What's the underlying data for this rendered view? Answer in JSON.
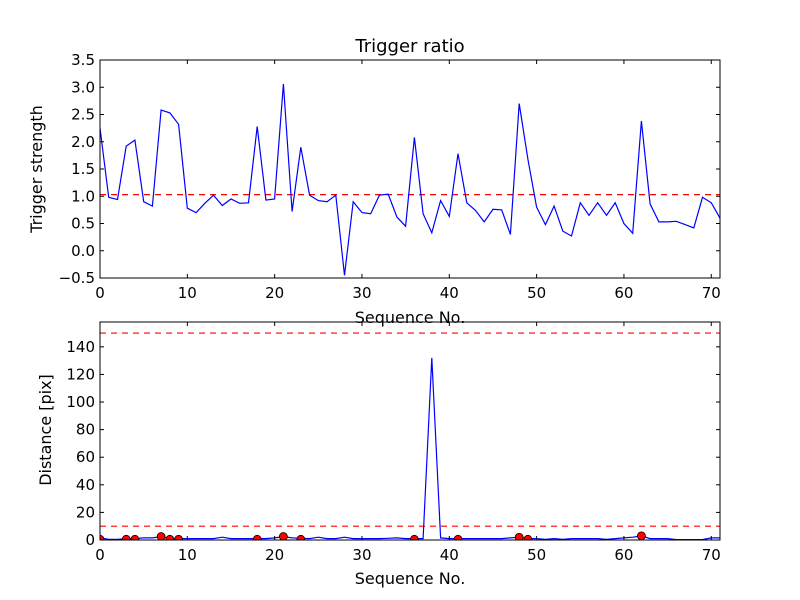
{
  "chart_data": [
    {
      "type": "line",
      "title": "Trigger ratio",
      "xlabel": "Sequence No.",
      "ylabel": "Trigger strength",
      "xlim": [
        0,
        71
      ],
      "ylim": [
        -0.5,
        3.5
      ],
      "xticks": [
        0,
        10,
        20,
        30,
        40,
        50,
        60,
        70
      ],
      "yticks": [
        -0.5,
        0.0,
        0.5,
        1.0,
        1.5,
        2.0,
        2.5,
        3.0,
        3.5
      ],
      "ytick_labels": [
        "−0.5",
        "0.0",
        "0.5",
        "1.0",
        "1.5",
        "2.0",
        "2.5",
        "3.0",
        "3.5"
      ],
      "grid": false,
      "series": [
        {
          "color": "#0000ff",
          "x": [
            0,
            1,
            2,
            3,
            4,
            5,
            6,
            7,
            8,
            9,
            10,
            11,
            12,
            13,
            14,
            15,
            16,
            17,
            18,
            19,
            20,
            21,
            22,
            23,
            24,
            25,
            26,
            27,
            28,
            29,
            30,
            31,
            32,
            33,
            34,
            35,
            36,
            37,
            38,
            39,
            40,
            41,
            42,
            43,
            44,
            45,
            46,
            47,
            48,
            49,
            50,
            51,
            52,
            53,
            54,
            55,
            56,
            57,
            58,
            59,
            60,
            61,
            62,
            63,
            64,
            65,
            66,
            67,
            68,
            69,
            70,
            71
          ],
          "y": [
            2.25,
            0.98,
            0.94,
            1.92,
            2.03,
            0.9,
            0.82,
            2.58,
            2.53,
            2.32,
            0.78,
            0.7,
            0.87,
            1.02,
            0.83,
            0.95,
            0.87,
            0.88,
            2.28,
            0.93,
            0.95,
            3.06,
            0.72,
            1.9,
            1.02,
            0.92,
            0.9,
            1.02,
            -0.45,
            0.9,
            0.7,
            0.68,
            1.02,
            1.04,
            0.62,
            0.45,
            2.08,
            0.68,
            0.33,
            0.92,
            0.63,
            1.78,
            0.88,
            0.74,
            0.53,
            0.76,
            0.75,
            0.3,
            2.7,
            1.68,
            0.8,
            0.48,
            0.82,
            0.36,
            0.27,
            0.88,
            0.65,
            0.88,
            0.65,
            0.88,
            0.5,
            0.32,
            2.38,
            0.86,
            0.53,
            0.53,
            0.54,
            0.48,
            0.42,
            0.98,
            0.88,
            0.6
          ]
        }
      ],
      "reference_lines": [
        {
          "y": 1.03,
          "color": "#ff0000",
          "style": "dashed"
        }
      ]
    },
    {
      "type": "line",
      "title": "",
      "xlabel": "Sequence No.",
      "ylabel": "Distance [pix]",
      "xlim": [
        0,
        71
      ],
      "ylim": [
        0,
        158
      ],
      "xticks": [
        0,
        10,
        20,
        30,
        40,
        50,
        60,
        70
      ],
      "yticks": [
        0,
        20,
        40,
        60,
        80,
        100,
        120,
        140
      ],
      "grid": false,
      "series": [
        {
          "color": "#0000ff",
          "x": [
            0,
            1,
            2,
            3,
            4,
            5,
            6,
            7,
            8,
            9,
            10,
            11,
            12,
            13,
            14,
            15,
            16,
            17,
            18,
            19,
            20,
            21,
            22,
            23,
            24,
            25,
            26,
            27,
            28,
            29,
            30,
            31,
            32,
            33,
            34,
            35,
            36,
            37,
            38,
            39,
            40,
            41,
            42,
            43,
            44,
            45,
            46,
            47,
            48,
            49,
            50,
            51,
            52,
            53,
            54,
            55,
            56,
            57,
            58,
            59,
            60,
            61,
            62,
            63,
            64,
            65,
            66,
            67,
            68,
            69,
            70,
            71
          ],
          "y": [
            1.5,
            0.5,
            0.5,
            1,
            1,
            1.5,
            1.5,
            2.5,
            1,
            1,
            1,
            1,
            1,
            1,
            2,
            1,
            1,
            1,
            1,
            1,
            1.5,
            2.5,
            1.5,
            1.2,
            1,
            2,
            1,
            1,
            2,
            1,
            1,
            1,
            1,
            1.2,
            1.5,
            1,
            1,
            1,
            132,
            1.5,
            1,
            1,
            1,
            1,
            1,
            1,
            1,
            1.5,
            2,
            1,
            1,
            0.5,
            1,
            0.5,
            1,
            1,
            1,
            1,
            0.5,
            1,
            1.5,
            2,
            3,
            1,
            1,
            1,
            0.3,
            0.3,
            0.3,
            0.3,
            1.5,
            1.5
          ]
        }
      ],
      "markers": {
        "color": "#ff0000",
        "x": [
          0,
          3,
          4,
          7,
          8,
          9,
          18,
          21,
          23,
          36,
          41,
          48,
          49,
          62
        ],
        "y": [
          0.5,
          0.5,
          0.5,
          2.5,
          0.5,
          0.5,
          0.5,
          2.5,
          0.5,
          0.5,
          0.5,
          2,
          0.5,
          3
        ]
      },
      "reference_lines": [
        {
          "y": 10,
          "color": "#ff0000",
          "style": "dashed"
        },
        {
          "y": 150,
          "color": "#ff0000",
          "style": "dashed"
        }
      ]
    }
  ]
}
